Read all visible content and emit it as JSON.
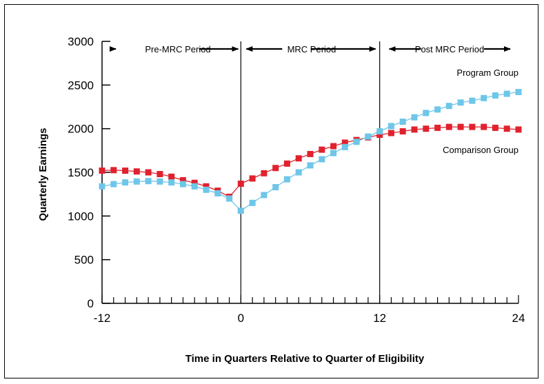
{
  "chart_data": {
    "type": "line",
    "title": "",
    "xlabel": "Time in Quarters Relative to Quarter of Eligibility",
    "ylabel": "Quarterly Earnings",
    "xlim": [
      -12,
      24
    ],
    "ylim": [
      0,
      3000
    ],
    "x_ticks": [
      -12,
      0,
      12,
      24
    ],
    "y_ticks": [
      0,
      500,
      1000,
      1500,
      2000,
      2500,
      3000
    ],
    "x": [
      -12,
      -11,
      -10,
      -9,
      -8,
      -7,
      -6,
      -5,
      -4,
      -3,
      -2,
      -1,
      0,
      1,
      2,
      3,
      4,
      5,
      6,
      7,
      8,
      9,
      10,
      11,
      12,
      13,
      14,
      15,
      16,
      17,
      18,
      19,
      20,
      21,
      22,
      23,
      24
    ],
    "series": [
      {
        "name": "Comparison Group",
        "color": "#e0222e",
        "marker": "square",
        "values": [
          1520,
          1525,
          1520,
          1510,
          1500,
          1480,
          1450,
          1410,
          1380,
          1340,
          1290,
          1220,
          1370,
          1430,
          1490,
          1550,
          1600,
          1660,
          1710,
          1760,
          1800,
          1840,
          1870,
          1900,
          1930,
          1950,
          1970,
          1990,
          2000,
          2010,
          2020,
          2020,
          2020,
          2020,
          2010,
          2000,
          1990
        ]
      },
      {
        "name": "Program Group",
        "color": "#6ec6e8",
        "marker": "square",
        "values": [
          1340,
          1365,
          1385,
          1395,
          1400,
          1395,
          1385,
          1365,
          1340,
          1300,
          1260,
          1200,
          1060,
          1150,
          1240,
          1330,
          1420,
          1500,
          1580,
          1650,
          1720,
          1790,
          1850,
          1910,
          1970,
          2030,
          2080,
          2130,
          2180,
          2220,
          2260,
          2300,
          2320,
          2350,
          2380,
          2400,
          2420
        ]
      }
    ],
    "period_dividers": [
      0,
      12
    ],
    "annotations": {
      "pre_period": "Pre-MRC Period",
      "mrc_period": "MRC Period",
      "post_period": "Post MRC Period",
      "program_label": "Program Group",
      "comparison_label": "Comparison Group"
    },
    "grid": false,
    "legend": "inline labels at right"
  }
}
